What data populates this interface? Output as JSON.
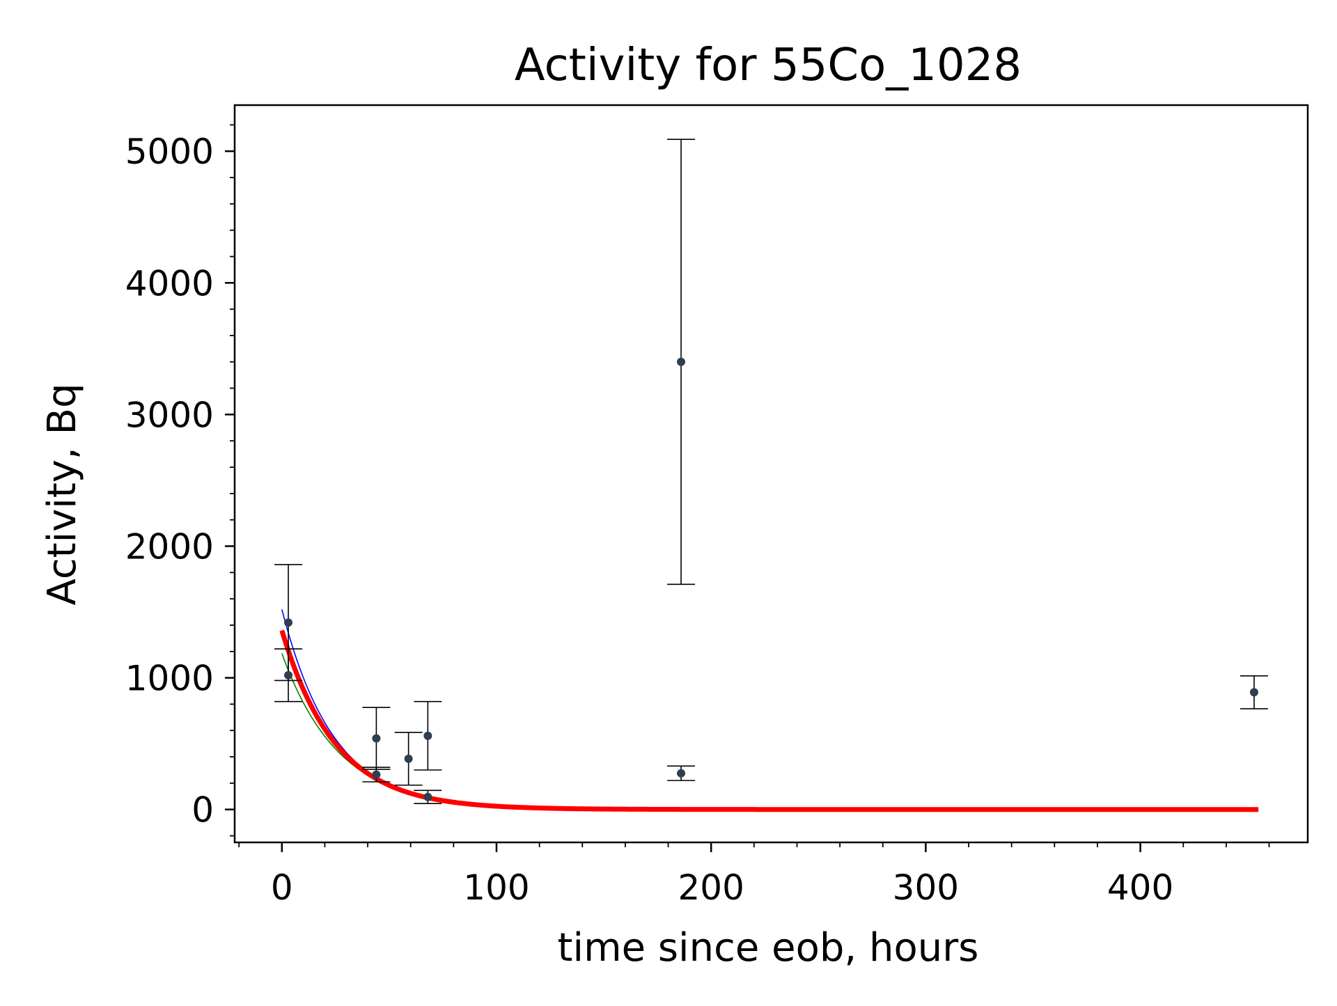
{
  "chart_data": {
    "type": "scatter",
    "title": "Activity for 55Co_1028",
    "xlabel": "time since eob, hours",
    "ylabel": "Activity, Bq",
    "xlim": [
      -22,
      478
    ],
    "ylim": [
      -250,
      5350
    ],
    "grid": false,
    "xticks": [
      0,
      100,
      200,
      300,
      400
    ],
    "yticks": [
      0,
      1000,
      2000,
      3000,
      4000,
      5000
    ],
    "points": [
      {
        "x": 3,
        "y": 1420,
        "err": 440
      },
      {
        "x": 3,
        "y": 1020,
        "err": 200
      },
      {
        "x": 44,
        "y": 540,
        "err": 235
      },
      {
        "x": 44,
        "y": 265,
        "err": 55
      },
      {
        "x": 59,
        "y": 385,
        "err": 200
      },
      {
        "x": 68,
        "y": 560,
        "err": 260
      },
      {
        "x": 68,
        "y": 95,
        "err": 50
      },
      {
        "x": 186,
        "y": 3400,
        "err": 1690
      },
      {
        "x": 186,
        "y": 275,
        "err": 55
      },
      {
        "x": 453,
        "y": 890,
        "err": 125
      }
    ],
    "fit_curves": [
      {
        "color": "#ff0000",
        "A0": 1360,
        "half_life": 17.3,
        "x_range": [
          0,
          455
        ],
        "stroke": "thick"
      },
      {
        "color": "#0000ff",
        "A0": 1520,
        "half_life": 16.6,
        "x_range": [
          0,
          455
        ],
        "stroke": "thin"
      },
      {
        "color": "#008000",
        "A0": 1185,
        "half_life": 18.3,
        "x_range": [
          0,
          455
        ],
        "stroke": "thin"
      }
    ],
    "colors": {
      "points": "#2f3e50",
      "errorbars": "#000000",
      "axes": "#000000"
    }
  }
}
